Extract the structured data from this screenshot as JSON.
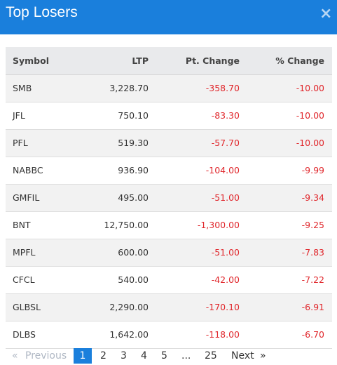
{
  "header": {
    "title": "Top Losers",
    "close_glyph": "×",
    "bg_color": "#1a7fdc"
  },
  "table": {
    "columns": [
      "Symbol",
      "LTP",
      "Pt. Change",
      "% Change"
    ],
    "rows": [
      {
        "symbol": "SMB",
        "ltp": "3,228.70",
        "pt_change": "-358.70",
        "pct_change": "-10.00"
      },
      {
        "symbol": "JFL",
        "ltp": "750.10",
        "pt_change": "-83.30",
        "pct_change": "-10.00"
      },
      {
        "symbol": "PFL",
        "ltp": "519.30",
        "pt_change": "-57.70",
        "pct_change": "-10.00"
      },
      {
        "symbol": "NABBC",
        "ltp": "936.90",
        "pt_change": "-104.00",
        "pct_change": "-9.99"
      },
      {
        "symbol": "GMFIL",
        "ltp": "495.00",
        "pt_change": "-51.00",
        "pct_change": "-9.34"
      },
      {
        "symbol": "BNT",
        "ltp": "12,750.00",
        "pt_change": "-1,300.00",
        "pct_change": "-9.25"
      },
      {
        "symbol": "MPFL",
        "ltp": "600.00",
        "pt_change": "-51.00",
        "pct_change": "-7.83"
      },
      {
        "symbol": "CFCL",
        "ltp": "540.00",
        "pt_change": "-42.00",
        "pct_change": "-7.22"
      },
      {
        "symbol": "GLBSL",
        "ltp": "2,290.00",
        "pt_change": "-170.10",
        "pct_change": "-6.91"
      },
      {
        "symbol": "DLBS",
        "ltp": "1,642.00",
        "pt_change": "-118.00",
        "pct_change": "-6.70"
      }
    ],
    "negative_color": "#e0262b"
  },
  "pagination": {
    "prev_arrow": "«",
    "prev_label": "Previous",
    "pages": [
      "1",
      "2",
      "3",
      "4",
      "5"
    ],
    "active_page": "1",
    "ellipsis": "...",
    "last_page": "25",
    "next_label": "Next",
    "next_arrow": "»"
  }
}
